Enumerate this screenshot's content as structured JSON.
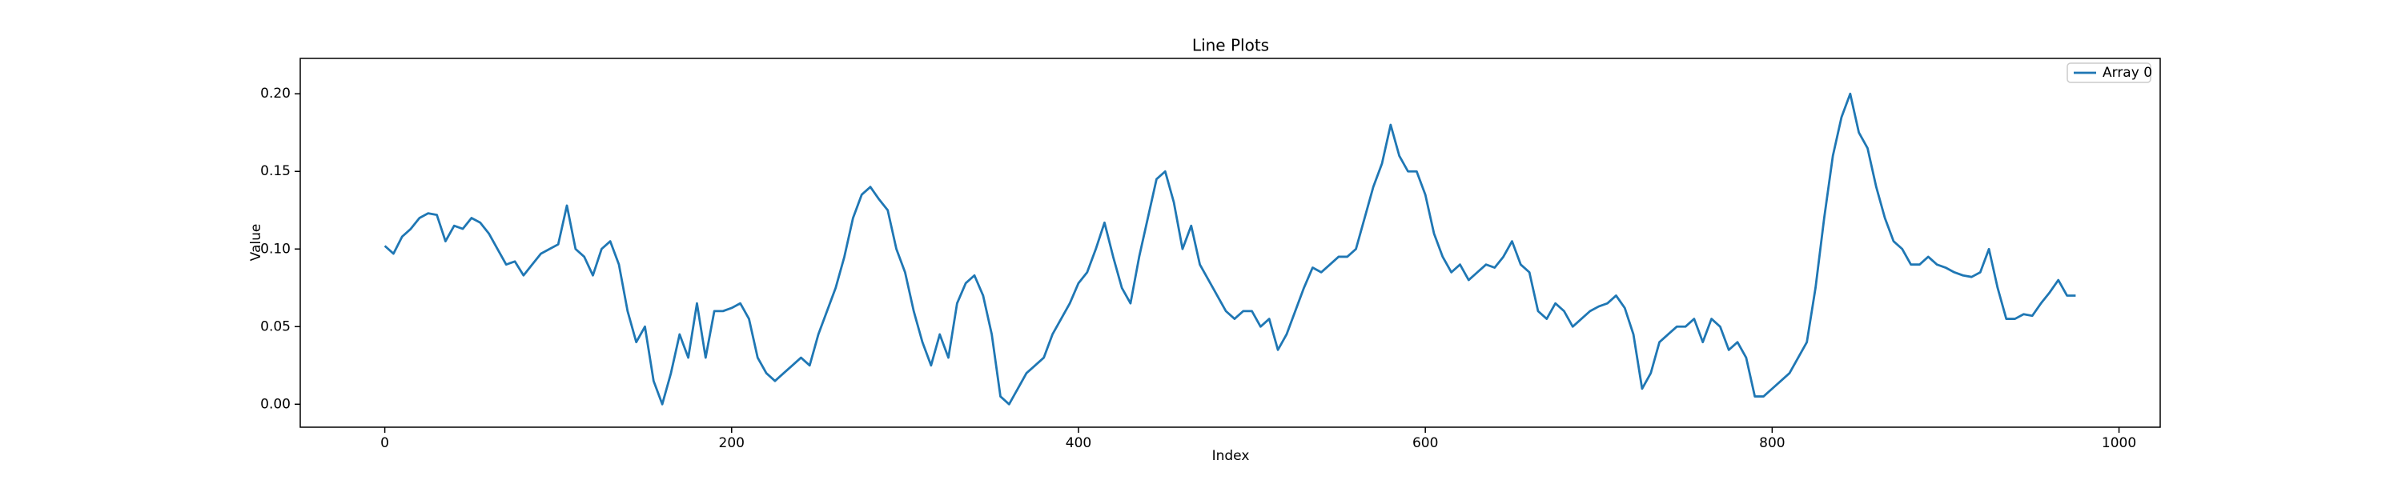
{
  "chart_data": {
    "type": "line",
    "title": "Line Plots",
    "x_label": "Index",
    "y_label": "Value",
    "x": [
      0,
      5,
      10,
      15,
      20,
      25,
      30,
      35,
      40,
      45,
      50,
      55,
      60,
      65,
      70,
      75,
      80,
      85,
      90,
      95,
      100,
      105,
      110,
      115,
      120,
      125,
      130,
      135,
      140,
      145,
      150,
      155,
      160,
      165,
      170,
      175,
      180,
      185,
      190,
      195,
      200,
      205,
      210,
      215,
      220,
      225,
      230,
      235,
      240,
      245,
      250,
      255,
      260,
      265,
      270,
      275,
      280,
      285,
      290,
      295,
      300,
      305,
      310,
      315,
      320,
      325,
      330,
      335,
      340,
      345,
      350,
      355,
      360,
      365,
      370,
      375,
      380,
      385,
      390,
      395,
      400,
      405,
      410,
      415,
      420,
      425,
      430,
      435,
      440,
      445,
      450,
      455,
      460,
      465,
      470,
      475,
      480,
      485,
      490,
      495,
      500,
      505,
      510,
      515,
      520,
      525,
      530,
      535,
      540,
      545,
      550,
      555,
      560,
      565,
      570,
      575,
      580,
      585,
      590,
      595,
      600,
      605,
      610,
      615,
      620,
      625,
      630,
      635,
      640,
      645,
      650,
      655,
      660,
      665,
      670,
      675,
      680,
      685,
      690,
      695,
      700,
      705,
      710,
      715,
      720,
      725,
      730,
      735,
      740,
      745,
      750,
      755,
      760,
      765,
      770,
      775,
      780,
      785,
      790,
      795,
      800,
      805,
      810,
      815,
      820,
      825,
      830,
      835,
      840,
      845,
      850,
      855,
      860,
      865,
      870,
      875,
      880,
      885,
      890,
      895,
      900,
      905,
      910,
      915,
      920,
      925,
      930,
      935,
      940,
      945,
      950,
      955,
      960,
      965,
      970,
      975
    ],
    "series": [
      {
        "name": "Array 0",
        "color": "#1f77b4",
        "values": [
          0.102,
          0.097,
          0.108,
          0.113,
          0.12,
          0.123,
          0.122,
          0.105,
          0.115,
          0.113,
          0.12,
          0.117,
          0.11,
          0.1,
          0.09,
          0.092,
          0.083,
          0.09,
          0.097,
          0.1,
          0.103,
          0.128,
          0.1,
          0.095,
          0.083,
          0.1,
          0.105,
          0.09,
          0.06,
          0.04,
          0.05,
          0.015,
          0.0,
          0.02,
          0.045,
          0.03,
          0.065,
          0.03,
          0.06,
          0.06,
          0.062,
          0.065,
          0.055,
          0.03,
          0.02,
          0.015,
          0.02,
          0.025,
          0.03,
          0.025,
          0.045,
          0.06,
          0.075,
          0.095,
          0.12,
          0.135,
          0.14,
          0.132,
          0.125,
          0.1,
          0.085,
          0.06,
          0.04,
          0.025,
          0.045,
          0.03,
          0.065,
          0.078,
          0.083,
          0.07,
          0.045,
          0.005,
          0.0,
          0.01,
          0.02,
          0.025,
          0.03,
          0.045,
          0.055,
          0.065,
          0.078,
          0.085,
          0.1,
          0.117,
          0.095,
          0.075,
          0.065,
          0.095,
          0.12,
          0.145,
          0.15,
          0.13,
          0.1,
          0.115,
          0.09,
          0.08,
          0.07,
          0.06,
          0.055,
          0.06,
          0.06,
          0.05,
          0.055,
          0.035,
          0.045,
          0.06,
          0.075,
          0.088,
          0.085,
          0.09,
          0.095,
          0.095,
          0.1,
          0.12,
          0.14,
          0.155,
          0.18,
          0.16,
          0.15,
          0.15,
          0.135,
          0.11,
          0.095,
          0.085,
          0.09,
          0.08,
          0.085,
          0.09,
          0.088,
          0.095,
          0.105,
          0.09,
          0.085,
          0.06,
          0.055,
          0.065,
          0.06,
          0.05,
          0.055,
          0.06,
          0.063,
          0.065,
          0.07,
          0.062,
          0.045,
          0.01,
          0.02,
          0.04,
          0.045,
          0.05,
          0.05,
          0.055,
          0.04,
          0.055,
          0.05,
          0.035,
          0.04,
          0.03,
          0.005,
          0.005,
          0.01,
          0.015,
          0.02,
          0.03,
          0.04,
          0.075,
          0.12,
          0.16,
          0.185,
          0.2,
          0.175,
          0.165,
          0.14,
          0.12,
          0.105,
          0.1,
          0.09,
          0.09,
          0.095,
          0.09,
          0.088,
          0.085,
          0.083,
          0.082,
          0.085,
          0.1,
          0.075,
          0.055,
          0.055,
          0.058,
          0.057,
          0.065,
          0.072,
          0.08,
          0.07,
          0.07
        ]
      }
    ],
    "xlim": [
      -48.75,
      1023.75
    ],
    "ylim": [
      -0.0148,
      0.2228
    ],
    "xticks": [
      0,
      200,
      400,
      600,
      800,
      1000
    ],
    "yticks": [
      {
        "value": 0,
        "label": "0.00"
      },
      0.05,
      {
        "value": 0.1,
        "label": "0.10"
      },
      0.15,
      {
        "value": 0.2,
        "label": "0.20"
      }
    ],
    "legend": "upper right"
  }
}
